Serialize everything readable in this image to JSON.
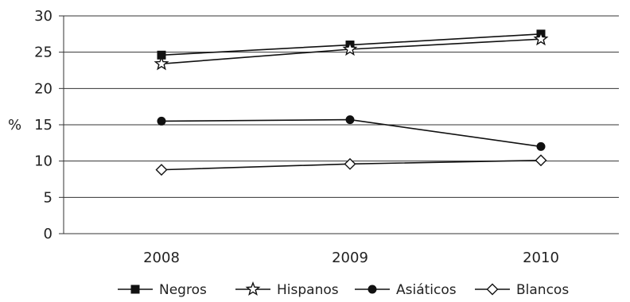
{
  "chart_data": {
    "type": "line",
    "title": "",
    "xlabel": "",
    "ylabel": "%",
    "categories": [
      "2008",
      "2009",
      "2010"
    ],
    "ylim": [
      0,
      30
    ],
    "yticks": [
      0,
      5,
      10,
      15,
      20,
      25,
      30
    ],
    "grid": true,
    "legend_position": "bottom",
    "series": [
      {
        "name": "Negros",
        "marker": "filled-square",
        "values": [
          24.6,
          26.0,
          27.5
        ]
      },
      {
        "name": "Hispanos",
        "marker": "open-star",
        "values": [
          23.4,
          25.4,
          26.8
        ]
      },
      {
        "name": "Asiáticos",
        "marker": "filled-circle",
        "values": [
          15.5,
          15.7,
          12.0
        ]
      },
      {
        "name": "Blancos",
        "marker": "open-diamond",
        "values": [
          8.8,
          9.6,
          10.1
        ]
      }
    ],
    "line_color": "#111111"
  }
}
